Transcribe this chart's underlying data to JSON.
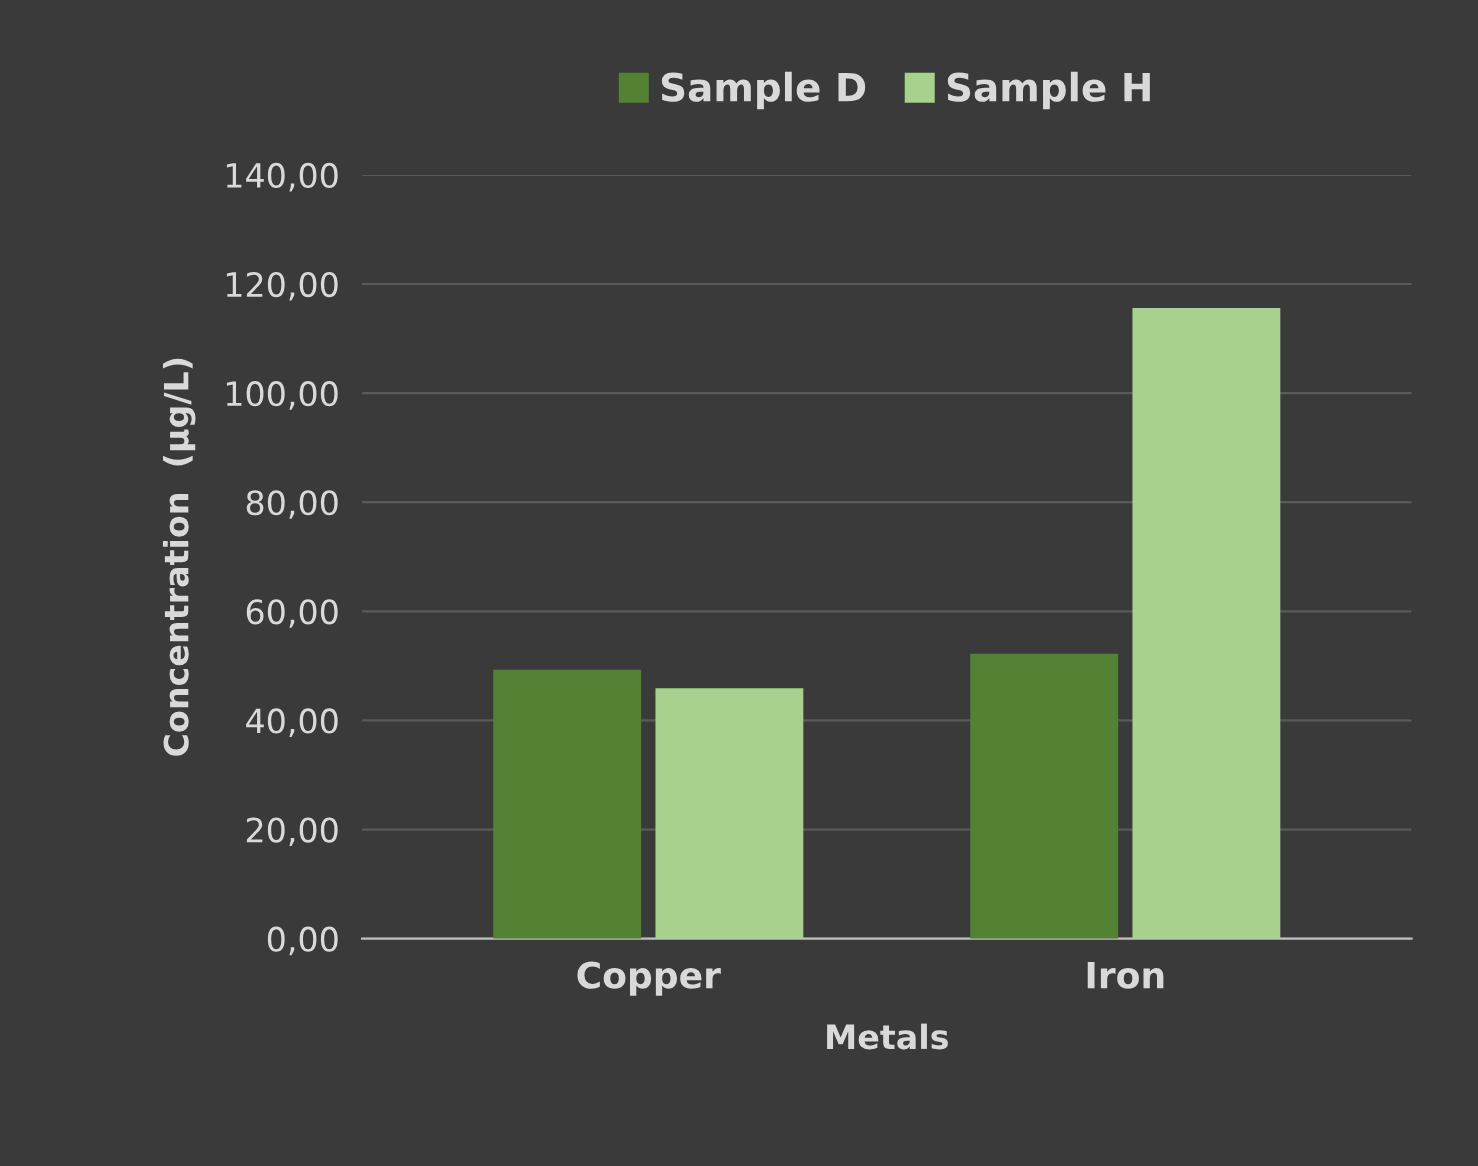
{
  "chart_data": {
    "type": "bar",
    "xlabel": "Metals",
    "ylabel": "Concentration  (µg/L)",
    "categories": [
      "Copper",
      "Iron"
    ],
    "series": [
      {
        "name": "Sample D",
        "color": "#548235",
        "values": [
          49.3,
          52.2
        ]
      },
      {
        "name": "Sample H",
        "color": "#a9d18e",
        "values": [
          45.9,
          115.6
        ]
      }
    ],
    "ylim": [
      0,
      140
    ],
    "yticks": [
      {
        "value": 0,
        "label": "0,00"
      },
      {
        "value": 20,
        "label": "20,00"
      },
      {
        "value": 40,
        "label": "40,00"
      },
      {
        "value": 60,
        "label": "60,00"
      },
      {
        "value": 80,
        "label": "80,00"
      },
      {
        "value": 100,
        "label": "100,00"
      },
      {
        "value": 120,
        "label": "120,00"
      },
      {
        "value": 140,
        "label": "140,00"
      }
    ],
    "grid": "y",
    "legend": "top"
  }
}
